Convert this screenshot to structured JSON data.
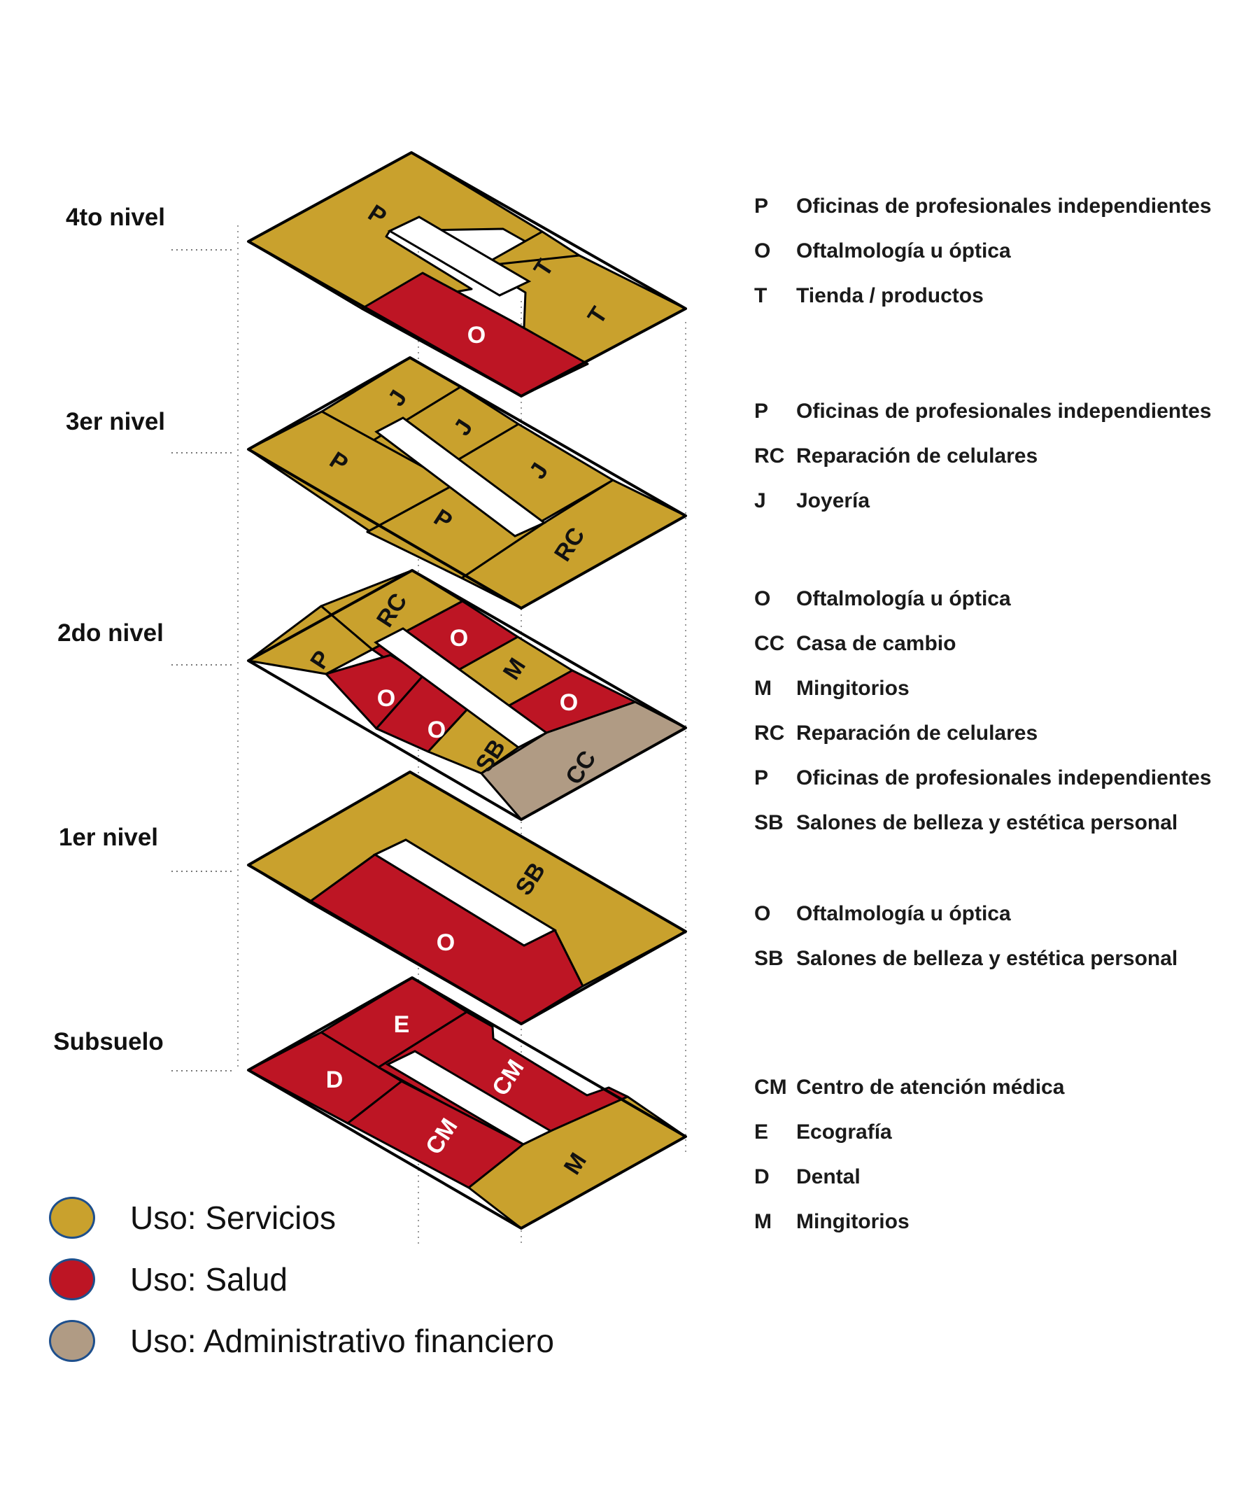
{
  "colors": {
    "servicios": "#c9a12d",
    "salud": "#bd1524",
    "administrativo": "#b09b84",
    "outline": "#000000",
    "legend_border": "#1e4f8c"
  },
  "levels": [
    {
      "id": "nivel4",
      "label": "4to nivel",
      "cells": [
        {
          "code": "P",
          "use": "servicios"
        },
        {
          "code": "T",
          "use": "servicios"
        },
        {
          "code": "T",
          "use": "servicios"
        },
        {
          "code": "O",
          "use": "salud"
        }
      ],
      "key": [
        {
          "code": "P",
          "desc": "Oficinas de profesionales independientes"
        },
        {
          "code": "O",
          "desc": "Oftalmología u óptica"
        },
        {
          "code": "T",
          "desc": "Tienda / productos"
        }
      ]
    },
    {
      "id": "nivel3",
      "label": "3er nivel",
      "cells": [
        {
          "code": "J",
          "use": "servicios"
        },
        {
          "code": "J",
          "use": "servicios"
        },
        {
          "code": "J",
          "use": "servicios"
        },
        {
          "code": "P",
          "use": "servicios"
        },
        {
          "code": "P",
          "use": "servicios"
        },
        {
          "code": "RC",
          "use": "servicios"
        }
      ],
      "key": [
        {
          "code": "P",
          "desc": "Oficinas de profesionales independientes"
        },
        {
          "code": "RC",
          "desc": "Reparación de celulares"
        },
        {
          "code": "J",
          "desc": "Joyería"
        }
      ]
    },
    {
      "id": "nivel2",
      "label": "2do nivel",
      "cells": [
        {
          "code": "RC",
          "use": "servicios"
        },
        {
          "code": "O",
          "use": "salud"
        },
        {
          "code": "M",
          "use": "servicios"
        },
        {
          "code": "O",
          "use": "salud"
        },
        {
          "code": "P",
          "use": "servicios"
        },
        {
          "code": "O",
          "use": "salud"
        },
        {
          "code": "O",
          "use": "salud"
        },
        {
          "code": "SB",
          "use": "servicios"
        },
        {
          "code": "CC",
          "use": "administrativo"
        }
      ],
      "key": [
        {
          "code": "O",
          "desc": "Oftalmología u óptica"
        },
        {
          "code": "CC",
          "desc": "Casa de cambio"
        },
        {
          "code": "M",
          "desc": "Mingitorios"
        },
        {
          "code": "RC",
          "desc": "Reparación de celulares"
        },
        {
          "code": "P",
          "desc": "Oficinas de profesionales independientes"
        },
        {
          "code": "SB",
          "desc": "Salones de belleza y estética personal"
        }
      ]
    },
    {
      "id": "nivel1",
      "label": "1er nivel",
      "cells": [
        {
          "code": "SB",
          "use": "servicios"
        },
        {
          "code": "O",
          "use": "salud"
        }
      ],
      "key": [
        {
          "code": "O",
          "desc": "Oftalmología u óptica"
        },
        {
          "code": "SB",
          "desc": "Salones de belleza y estética personal"
        }
      ]
    },
    {
      "id": "subsuelo",
      "label": "Subsuelo",
      "cells": [
        {
          "code": "E",
          "use": "salud"
        },
        {
          "code": "D",
          "use": "salud"
        },
        {
          "code": "CM",
          "use": "salud"
        },
        {
          "code": "CM",
          "use": "salud"
        },
        {
          "code": "M",
          "use": "servicios"
        }
      ],
      "key": [
        {
          "code": "CM",
          "desc": "Centro de atención médica"
        },
        {
          "code": "E",
          "desc": "Ecografía"
        },
        {
          "code": "D",
          "desc": "Dental"
        },
        {
          "code": "M",
          "desc": "Mingitorios"
        }
      ]
    }
  ],
  "legend": [
    {
      "label": "Uso: Servicios",
      "use": "servicios"
    },
    {
      "label": "Uso: Salud",
      "use": "salud"
    },
    {
      "label": "Uso: Administrativo financiero",
      "use": "administrativo"
    }
  ]
}
